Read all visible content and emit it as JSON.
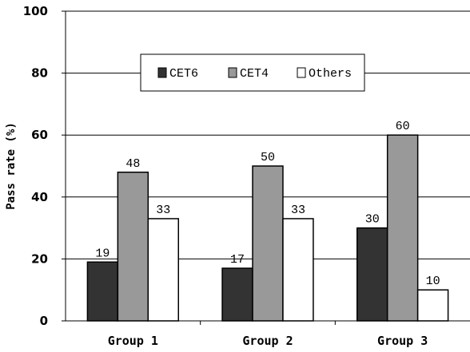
{
  "chart_data": {
    "type": "bar",
    "categories": [
      "Group 1",
      "Group 2",
      "Group 3"
    ],
    "series": [
      {
        "name": "CET6",
        "values": [
          19,
          17,
          30
        ],
        "color": "#333333"
      },
      {
        "name": "CET4",
        "values": [
          48,
          50,
          60
        ],
        "color": "#999999"
      },
      {
        "name": "Others",
        "values": [
          33,
          33,
          10
        ],
        "color": "#ffffff"
      }
    ],
    "title": "",
    "xlabel": "",
    "ylabel": "Pass rate (%)",
    "ylim": [
      0,
      100
    ],
    "yticks": [
      0,
      20,
      40,
      60,
      80,
      100
    ],
    "grid": "horizontal",
    "legend_position": "top-center"
  }
}
